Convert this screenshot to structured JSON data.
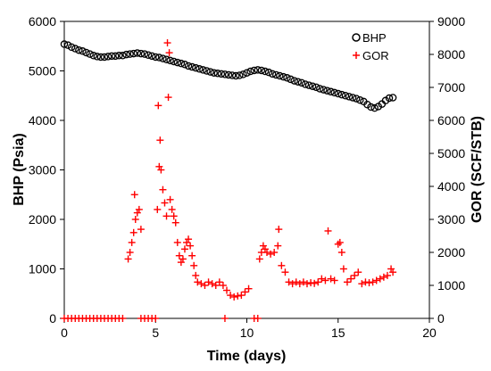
{
  "chart_data": {
    "type": "scatter",
    "xlabel": "Time (days)",
    "ylabel": "BHP (Psia)",
    "y2label": "GOR (SCF/STB)",
    "xlim": [
      0,
      20
    ],
    "ylim": [
      0,
      6000
    ],
    "y2lim": [
      0,
      9000
    ],
    "x_ticks": [
      "0",
      "5",
      "10",
      "15",
      "20"
    ],
    "y_ticks": [
      "0",
      "1000",
      "2000",
      "3000",
      "4000",
      "5000",
      "6000"
    ],
    "y2_ticks": [
      "0",
      "1000",
      "2000",
      "3000",
      "4000",
      "5000",
      "6000",
      "7000",
      "8000",
      "9000"
    ],
    "legend_position": "top-right",
    "grid": false,
    "series": [
      {
        "name": "BHP",
        "axis": "left",
        "marker": "circle-open",
        "color": "#000000",
        "points": [
          [
            0.0,
            5540
          ],
          [
            0.2,
            5520
          ],
          [
            0.4,
            5480
          ],
          [
            0.6,
            5450
          ],
          [
            0.8,
            5420
          ],
          [
            1.0,
            5400
          ],
          [
            1.2,
            5370
          ],
          [
            1.4,
            5340
          ],
          [
            1.6,
            5310
          ],
          [
            1.8,
            5290
          ],
          [
            2.0,
            5280
          ],
          [
            2.2,
            5280
          ],
          [
            2.4,
            5290
          ],
          [
            2.6,
            5300
          ],
          [
            2.8,
            5300
          ],
          [
            3.0,
            5310
          ],
          [
            3.2,
            5310
          ],
          [
            3.4,
            5330
          ],
          [
            3.6,
            5340
          ],
          [
            3.8,
            5350
          ],
          [
            4.0,
            5360
          ],
          [
            4.2,
            5350
          ],
          [
            4.4,
            5340
          ],
          [
            4.6,
            5320
          ],
          [
            4.8,
            5300
          ],
          [
            5.0,
            5280
          ],
          [
            5.2,
            5270
          ],
          [
            5.4,
            5250
          ],
          [
            5.6,
            5230
          ],
          [
            5.8,
            5210
          ],
          [
            6.0,
            5190
          ],
          [
            6.2,
            5170
          ],
          [
            6.4,
            5150
          ],
          [
            6.6,
            5130
          ],
          [
            6.8,
            5100
          ],
          [
            7.0,
            5080
          ],
          [
            7.2,
            5060
          ],
          [
            7.4,
            5040
          ],
          [
            7.6,
            5020
          ],
          [
            7.8,
            5000
          ],
          [
            8.0,
            4980
          ],
          [
            8.2,
            4960
          ],
          [
            8.4,
            4950
          ],
          [
            8.6,
            4940
          ],
          [
            8.8,
            4930
          ],
          [
            9.0,
            4920
          ],
          [
            9.2,
            4910
          ],
          [
            9.4,
            4900
          ],
          [
            9.6,
            4910
          ],
          [
            9.8,
            4930
          ],
          [
            10.0,
            4960
          ],
          [
            10.2,
            4990
          ],
          [
            10.4,
            5010
          ],
          [
            10.6,
            5020
          ],
          [
            10.8,
            5010
          ],
          [
            11.0,
            4990
          ],
          [
            11.2,
            4970
          ],
          [
            11.4,
            4940
          ],
          [
            11.6,
            4920
          ],
          [
            11.8,
            4900
          ],
          [
            12.0,
            4880
          ],
          [
            12.2,
            4860
          ],
          [
            12.4,
            4830
          ],
          [
            12.6,
            4800
          ],
          [
            12.8,
            4780
          ],
          [
            13.0,
            4760
          ],
          [
            13.2,
            4730
          ],
          [
            13.4,
            4710
          ],
          [
            13.6,
            4690
          ],
          [
            13.8,
            4670
          ],
          [
            14.0,
            4640
          ],
          [
            14.2,
            4620
          ],
          [
            14.4,
            4600
          ],
          [
            14.6,
            4580
          ],
          [
            14.8,
            4560
          ],
          [
            15.0,
            4540
          ],
          [
            15.2,
            4520
          ],
          [
            15.4,
            4500
          ],
          [
            15.6,
            4480
          ],
          [
            15.8,
            4460
          ],
          [
            16.0,
            4440
          ],
          [
            16.2,
            4410
          ],
          [
            16.4,
            4380
          ],
          [
            16.6,
            4320
          ],
          [
            16.8,
            4270
          ],
          [
            17.0,
            4250
          ],
          [
            17.2,
            4280
          ],
          [
            17.4,
            4330
          ],
          [
            17.6,
            4400
          ],
          [
            17.8,
            4450
          ],
          [
            18.0,
            4460
          ]
        ]
      },
      {
        "name": "GOR",
        "axis": "right",
        "marker": "plus",
        "color": "#ff0000",
        "points": [
          [
            0.0,
            0
          ],
          [
            0.2,
            0
          ],
          [
            0.4,
            0
          ],
          [
            0.6,
            0
          ],
          [
            0.8,
            0
          ],
          [
            1.0,
            0
          ],
          [
            1.2,
            0
          ],
          [
            1.4,
            0
          ],
          [
            1.6,
            0
          ],
          [
            1.8,
            0
          ],
          [
            2.0,
            0
          ],
          [
            2.2,
            0
          ],
          [
            2.4,
            0
          ],
          [
            2.6,
            0
          ],
          [
            2.8,
            0
          ],
          [
            3.0,
            0
          ],
          [
            3.2,
            0
          ],
          [
            4.2,
            0
          ],
          [
            4.4,
            0
          ],
          [
            4.6,
            0
          ],
          [
            4.8,
            0
          ],
          [
            5.0,
            0
          ],
          [
            8.8,
            0
          ],
          [
            10.4,
            0
          ],
          [
            10.6,
            0
          ],
          [
            3.5,
            1800
          ],
          [
            3.6,
            2000
          ],
          [
            3.7,
            2300
          ],
          [
            3.8,
            2600
          ],
          [
            3.85,
            3750
          ],
          [
            3.9,
            3000
          ],
          [
            4.0,
            3200
          ],
          [
            4.1,
            3300
          ],
          [
            4.2,
            2700
          ],
          [
            5.1,
            3300
          ],
          [
            5.15,
            6450
          ],
          [
            5.2,
            4600
          ],
          [
            5.25,
            5400
          ],
          [
            5.3,
            4500
          ],
          [
            5.4,
            3900
          ],
          [
            5.5,
            3500
          ],
          [
            5.6,
            3100
          ],
          [
            5.65,
            8350
          ],
          [
            5.7,
            6700
          ],
          [
            5.75,
            8050
          ],
          [
            5.8,
            3600
          ],
          [
            5.9,
            3300
          ],
          [
            6.0,
            3100
          ],
          [
            6.1,
            2900
          ],
          [
            6.2,
            2300
          ],
          [
            6.3,
            1900
          ],
          [
            6.4,
            1700
          ],
          [
            6.5,
            1800
          ],
          [
            6.6,
            2100
          ],
          [
            6.7,
            2300
          ],
          [
            6.8,
            2400
          ],
          [
            6.9,
            2200
          ],
          [
            7.0,
            1900
          ],
          [
            7.1,
            1600
          ],
          [
            7.2,
            1300
          ],
          [
            7.3,
            1100
          ],
          [
            7.5,
            1050
          ],
          [
            7.7,
            1000
          ],
          [
            7.9,
            1100
          ],
          [
            8.1,
            1050
          ],
          [
            8.3,
            1000
          ],
          [
            8.5,
            1100
          ],
          [
            8.7,
            1000
          ],
          [
            8.9,
            850
          ],
          [
            9.1,
            700
          ],
          [
            9.3,
            650
          ],
          [
            9.5,
            680
          ],
          [
            9.7,
            700
          ],
          [
            9.9,
            800
          ],
          [
            10.1,
            900
          ],
          [
            10.7,
            1800
          ],
          [
            10.8,
            2000
          ],
          [
            10.9,
            2200
          ],
          [
            11.0,
            2100
          ],
          [
            11.1,
            2000
          ],
          [
            11.3,
            1950
          ],
          [
            11.5,
            2000
          ],
          [
            11.7,
            2200
          ],
          [
            11.75,
            2700
          ],
          [
            11.9,
            1600
          ],
          [
            12.1,
            1400
          ],
          [
            12.3,
            1100
          ],
          [
            12.5,
            1050
          ],
          [
            12.7,
            1100
          ],
          [
            12.9,
            1050
          ],
          [
            13.1,
            1100
          ],
          [
            13.3,
            1050
          ],
          [
            13.5,
            1080
          ],
          [
            13.7,
            1060
          ],
          [
            13.9,
            1100
          ],
          [
            14.1,
            1200
          ],
          [
            14.3,
            1150
          ],
          [
            14.45,
            2650
          ],
          [
            14.6,
            1200
          ],
          [
            14.8,
            1150
          ],
          [
            15.0,
            2250
          ],
          [
            15.1,
            2300
          ],
          [
            15.2,
            2000
          ],
          [
            15.3,
            1500
          ],
          [
            15.5,
            1100
          ],
          [
            15.7,
            1200
          ],
          [
            15.9,
            1300
          ],
          [
            16.1,
            1400
          ],
          [
            16.3,
            1050
          ],
          [
            16.5,
            1100
          ],
          [
            16.7,
            1080
          ],
          [
            16.9,
            1100
          ],
          [
            17.1,
            1150
          ],
          [
            17.3,
            1200
          ],
          [
            17.5,
            1250
          ],
          [
            17.7,
            1300
          ],
          [
            17.9,
            1500
          ],
          [
            18.0,
            1400
          ]
        ]
      }
    ]
  }
}
